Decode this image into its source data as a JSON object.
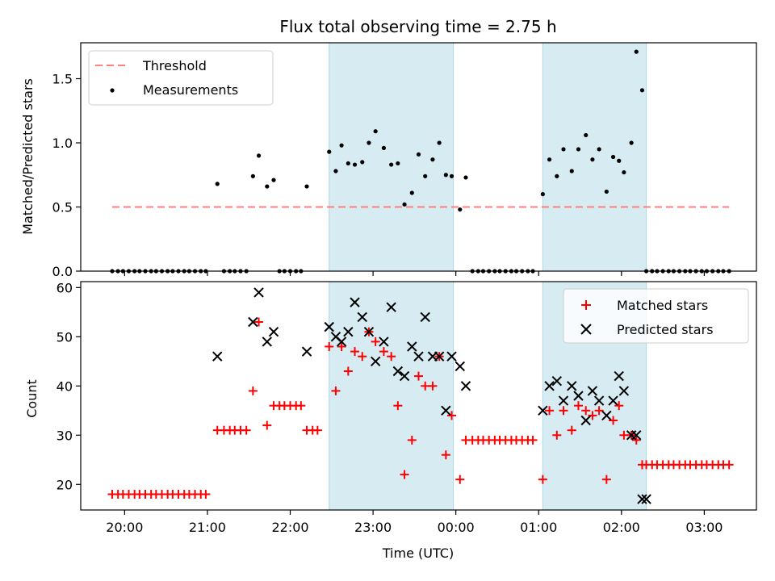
{
  "chart_data": {
    "title": "Flux total observing time = 2.75 h",
    "type": "scatter",
    "xlabel": "Time (UTC)",
    "x_ticks": [
      "20:00",
      "21:00",
      "22:00",
      "23:00",
      "00:00",
      "01:00",
      "02:00",
      "03:00"
    ],
    "x_tick_hours": [
      20,
      21,
      22,
      23,
      24,
      25,
      26,
      27
    ],
    "xlim_hours": [
      19.47,
      27.63
    ],
    "shaded_intervals_hours": [
      [
        22.47,
        23.97
      ],
      [
        25.05,
        26.3
      ]
    ],
    "colors": {
      "shade": "#add8e6",
      "threshold": "#ff7f7f",
      "measurements": "#000000",
      "matched": "#ff0000",
      "predicted": "#000000"
    },
    "top": {
      "ylabel": "Matched/Predicted stars",
      "ylim": [
        0,
        1.78
      ],
      "y_ticks": [
        "0.0",
        "0.5",
        "1.0",
        "1.5"
      ],
      "y_tick_values": [
        0,
        0.5,
        1.0,
        1.5
      ],
      "legend": {
        "placement": "upper-left",
        "threshold_label": "Threshold",
        "measurements_label": "Measurements"
      },
      "threshold": {
        "value": 0.5,
        "x_range_hours": [
          19.85,
          27.3
        ]
      },
      "measurements": {
        "x": [
          19.85,
          19.92,
          19.98,
          20.05,
          20.12,
          20.18,
          20.25,
          20.32,
          20.38,
          20.45,
          20.52,
          20.58,
          20.65,
          20.72,
          20.78,
          20.85,
          20.92,
          20.98,
          21.12,
          21.2,
          21.27,
          21.33,
          21.4,
          21.47,
          21.55,
          21.62,
          21.72,
          21.8,
          21.87,
          21.93,
          22.0,
          22.07,
          22.13,
          22.2,
          22.47,
          22.55,
          22.62,
          22.7,
          22.78,
          22.87,
          22.95,
          23.03,
          23.13,
          23.22,
          23.3,
          23.38,
          23.47,
          23.55,
          23.63,
          23.72,
          23.8,
          23.88,
          23.95,
          24.05,
          24.12,
          24.2,
          24.27,
          24.33,
          24.4,
          24.47,
          24.53,
          24.6,
          24.67,
          24.73,
          24.8,
          24.87,
          24.93,
          25.05,
          25.13,
          25.22,
          25.3,
          25.4,
          25.48,
          25.57,
          25.65,
          25.73,
          25.82,
          25.9,
          25.97,
          26.03,
          26.12,
          26.18,
          26.25,
          26.3,
          26.37,
          26.43,
          26.5,
          26.57,
          26.63,
          26.7,
          26.77,
          26.83,
          26.9,
          26.97,
          27.03,
          27.1,
          27.17,
          27.23,
          27.3
        ],
        "y": [
          0,
          0,
          0,
          0,
          0,
          0,
          0,
          0,
          0,
          0,
          0,
          0,
          0,
          0,
          0,
          0,
          0,
          0,
          0.68,
          0,
          0,
          0,
          0,
          0,
          0.74,
          0.9,
          0.66,
          0.71,
          0,
          0,
          0,
          0,
          0,
          0.66,
          0.93,
          0.78,
          0.98,
          0.84,
          0.83,
          0.85,
          1.0,
          1.09,
          0.96,
          0.83,
          0.84,
          0.52,
          0.61,
          0.91,
          0.74,
          0.87,
          1.0,
          0.75,
          0.74,
          0.48,
          0.73,
          0,
          0,
          0,
          0,
          0,
          0,
          0,
          0,
          0,
          0,
          0,
          0,
          0.6,
          0.87,
          0.74,
          0.95,
          0.78,
          0.95,
          1.06,
          0.87,
          0.95,
          0.62,
          0.89,
          0.86,
          0.77,
          1.0,
          1.71,
          1.41,
          0,
          0,
          0,
          0,
          0,
          0,
          0,
          0,
          0,
          0,
          0,
          0,
          0,
          0,
          0,
          0
        ]
      }
    },
    "bottom": {
      "ylabel": "Count",
      "ylim": [
        14.8,
        61.2
      ],
      "y_ticks": [
        "20",
        "30",
        "40",
        "50",
        "60"
      ],
      "y_tick_values": [
        20,
        30,
        40,
        50,
        60
      ],
      "legend": {
        "placement": "upper-right",
        "matched_label": "Matched stars",
        "predicted_label": "Predicted stars"
      },
      "matched_stars": {
        "x": [
          19.85,
          19.92,
          19.98,
          20.05,
          20.12,
          20.18,
          20.25,
          20.32,
          20.38,
          20.45,
          20.52,
          20.58,
          20.65,
          20.72,
          20.78,
          20.85,
          20.92,
          20.98,
          21.12,
          21.2,
          21.27,
          21.33,
          21.4,
          21.47,
          21.55,
          21.62,
          21.72,
          21.8,
          21.87,
          21.93,
          22.0,
          22.07,
          22.13,
          22.2,
          22.27,
          22.33,
          22.47,
          22.55,
          22.62,
          22.7,
          22.78,
          22.87,
          22.95,
          23.03,
          23.13,
          23.22,
          23.3,
          23.38,
          23.47,
          23.55,
          23.63,
          23.72,
          23.8,
          23.88,
          23.95,
          24.05,
          24.12,
          24.2,
          24.27,
          24.33,
          24.4,
          24.47,
          24.53,
          24.6,
          24.67,
          24.73,
          24.8,
          24.87,
          24.93,
          25.05,
          25.13,
          25.22,
          25.3,
          25.4,
          25.48,
          25.57,
          25.65,
          25.73,
          25.82,
          25.9,
          25.97,
          26.03,
          26.12,
          26.18,
          26.25,
          26.3,
          26.37,
          26.43,
          26.5,
          26.57,
          26.63,
          26.7,
          26.77,
          26.83,
          26.9,
          26.97,
          27.03,
          27.1,
          27.17,
          27.23,
          27.3
        ],
        "y": [
          18,
          18,
          18,
          18,
          18,
          18,
          18,
          18,
          18,
          18,
          18,
          18,
          18,
          18,
          18,
          18,
          18,
          18,
          31,
          31,
          31,
          31,
          31,
          31,
          39,
          53,
          32,
          36,
          36,
          36,
          36,
          36,
          36,
          31,
          31,
          31,
          48,
          39,
          48,
          43,
          47,
          46,
          51,
          49,
          47,
          46,
          36,
          22,
          29,
          42,
          40,
          40,
          46,
          26,
          34,
          21,
          29,
          29,
          29,
          29,
          29,
          29,
          29,
          29,
          29,
          29,
          29,
          29,
          29,
          21,
          35,
          30,
          35,
          31,
          36,
          35,
          34,
          35,
          21,
          33,
          36,
          30,
          30,
          29,
          24,
          24,
          24,
          24,
          24,
          24,
          24,
          24,
          24,
          24,
          24,
          24,
          24,
          24,
          24,
          24,
          24
        ]
      },
      "predicted_stars": {
        "x": [
          21.12,
          21.55,
          21.62,
          21.72,
          21.8,
          22.2,
          22.47,
          22.55,
          22.62,
          22.7,
          22.78,
          22.87,
          22.95,
          23.03,
          23.13,
          23.22,
          23.3,
          23.38,
          23.47,
          23.55,
          23.63,
          23.72,
          23.8,
          23.88,
          23.95,
          24.05,
          24.12,
          25.05,
          25.13,
          25.22,
          25.3,
          25.4,
          25.48,
          25.57,
          25.65,
          25.73,
          25.82,
          25.9,
          25.97,
          26.03,
          26.12,
          26.18,
          26.25,
          26.3
        ],
        "y": [
          46,
          53,
          59,
          49,
          51,
          47,
          52,
          50,
          49,
          51,
          57,
          54,
          51,
          45,
          49,
          56,
          43,
          42,
          48,
          46,
          54,
          46,
          46,
          35,
          46,
          44,
          40,
          35,
          40,
          41,
          37,
          40,
          38,
          33,
          39,
          37,
          34,
          37,
          42,
          39,
          30,
          30,
          17,
          17
        ]
      }
    }
  }
}
